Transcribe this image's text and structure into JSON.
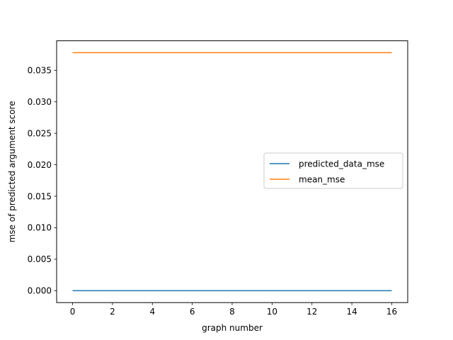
{
  "chart_data": {
    "type": "line",
    "title": "",
    "xlabel": "graph number",
    "ylabel": "mse of predicted argument score",
    "x": [
      0,
      16
    ],
    "xlim": [
      -0.8,
      16.8
    ],
    "ylim": [
      -0.00189,
      0.03969
    ],
    "xticks": [
      0,
      2,
      4,
      6,
      8,
      10,
      12,
      14,
      16
    ],
    "xtick_labels": [
      "0",
      "2",
      "4",
      "6",
      "8",
      "10",
      "12",
      "14",
      "16"
    ],
    "yticks": [
      0.0,
      0.005,
      0.01,
      0.015,
      0.02,
      0.025,
      0.03,
      0.035
    ],
    "ytick_labels": [
      "0.000",
      "0.005",
      "0.010",
      "0.015",
      "0.020",
      "0.025",
      "0.030",
      "0.035"
    ],
    "grid": false,
    "legend_position": "center-right",
    "series": [
      {
        "name": "predicted_data_mse",
        "color": "#1f77b4",
        "values": [
          0.0,
          0.0
        ]
      },
      {
        "name": "mean_mse",
        "color": "#ff7f0e",
        "values": [
          0.0378,
          0.0378
        ]
      }
    ]
  }
}
